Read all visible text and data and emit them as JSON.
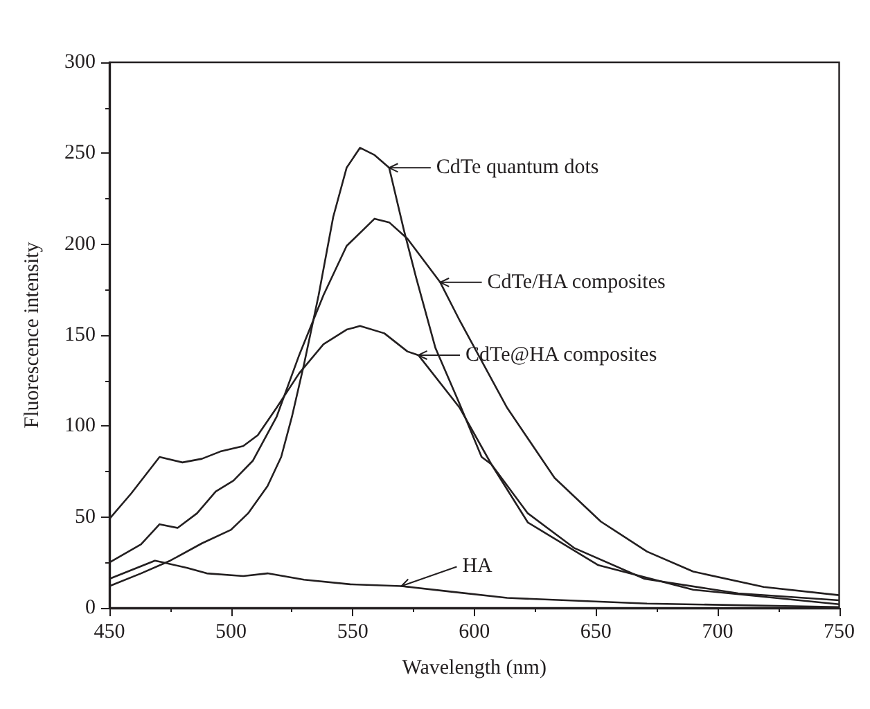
{
  "chart_data": {
    "type": "line",
    "xlabel": "Wavelength (nm)",
    "ylabel": "Fluorescence intensity",
    "xlim": [
      450,
      750
    ],
    "xticks": [
      450,
      500,
      550,
      600,
      650,
      700,
      750
    ],
    "ylim": [
      0,
      300
    ],
    "yticks": [
      0,
      50,
      100,
      150,
      200,
      250,
      300
    ],
    "grid": false,
    "marker": "none",
    "line_style": "solid",
    "series": [
      {
        "color": "#231f20",
        "x": [
          450,
          463,
          475,
          488,
          500,
          507,
          515,
          520.6,
          525,
          530,
          536,
          542,
          547.5,
          553,
          559,
          565,
          571,
          576,
          584,
          594,
          603,
          607,
          622,
          651,
          690,
          750
        ],
        "values": [
          12,
          19,
          26,
          35.5,
          43,
          52,
          67,
          83,
          105,
          134,
          172,
          215,
          242,
          253,
          249,
          242,
          208,
          182,
          143,
          112,
          83,
          79,
          47,
          23.5,
          10,
          2
        ]
      },
      {
        "color": "#231f20",
        "x": [
          450,
          463,
          470.6,
          478,
          486,
          493.7,
          501,
          509,
          518.7,
          528,
          538,
          547.5,
          559,
          565,
          572.5,
          586,
          594,
          613.5,
          633,
          652,
          671,
          690,
          719,
          750
        ],
        "values": [
          25,
          35,
          46,
          44,
          52,
          64,
          70,
          81,
          105,
          139,
          172,
          199,
          214,
          212,
          203,
          179,
          158,
          110,
          71.5,
          47.5,
          31,
          20,
          11.5,
          7
        ]
      },
      {
        "color": "#231f20",
        "x": [
          450,
          459,
          470.6,
          480,
          488,
          495.6,
          505,
          511,
          518.7,
          528,
          538,
          547.5,
          553,
          563,
          572.5,
          577,
          594,
          607,
          622,
          641,
          670,
          708.5,
          750
        ],
        "values": [
          49,
          63,
          83,
          80,
          82,
          86,
          89,
          95,
          110,
          129,
          145,
          153,
          155,
          151,
          141,
          139,
          110,
          79,
          52,
          33,
          16,
          8,
          4.2
        ]
      },
      {
        "color": "#231f20",
        "x": [
          450,
          468.7,
          472,
          482,
          490,
          505,
          515,
          530,
          549,
          570,
          590,
          613.5,
          671,
          750
        ],
        "values": [
          16,
          26,
          25,
          22,
          19,
          17.5,
          19,
          15.5,
          13,
          12,
          9,
          5.5,
          2.4,
          0.5
        ]
      }
    ],
    "annotations": [
      {
        "text": "CdTe quantum dots",
        "x": 565,
        "y": 242
      },
      {
        "text": "CdTe/HA composites",
        "x": 586,
        "y": 179
      },
      {
        "text": "CdTe@HA composites",
        "x": 577,
        "y": 139
      },
      {
        "text": "HA",
        "x": 570,
        "y": 12
      }
    ]
  }
}
